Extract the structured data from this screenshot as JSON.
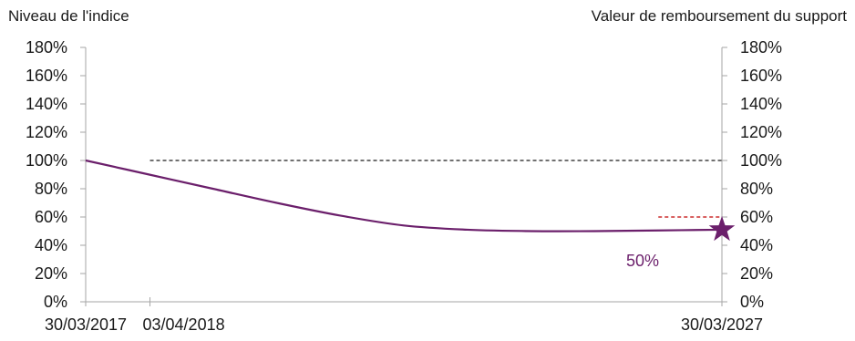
{
  "chart_data": {
    "type": "line",
    "title": "",
    "ylabel_left": "Niveau de l'indice",
    "ylabel_right": "Valeur de remboursement du support",
    "ylim": [
      0,
      180
    ],
    "yticks": [
      0,
      20,
      40,
      60,
      80,
      100,
      120,
      140,
      160,
      180
    ],
    "ytick_labels": [
      "0%",
      "20%",
      "40%",
      "60%",
      "80%",
      "100%",
      "120%",
      "140%",
      "160%",
      "180%"
    ],
    "xlim": [
      "2017-03-30",
      "2027-03-30"
    ],
    "xticks": [
      {
        "date": "2017-03-30",
        "label": "30/03/2017"
      },
      {
        "date": "2018-04-03",
        "label": "03/04/2018"
      },
      {
        "date": "2027-03-30",
        "label": "30/03/2027"
      }
    ],
    "series": [
      {
        "color": "#6b1f6b",
        "points": [
          {
            "x": "2017-03-30",
            "y": 100
          },
          {
            "x": "2018-03-30",
            "y": 90
          },
          {
            "x": "2019-03-30",
            "y": 80
          },
          {
            "x": "2020-03-30",
            "y": 70
          },
          {
            "x": "2021-03-30",
            "y": 61
          },
          {
            "x": "2022-03-30",
            "y": 54
          },
          {
            "x": "2023-03-30",
            "y": 51
          },
          {
            "x": "2024-03-30",
            "y": 50
          },
          {
            "x": "2025-03-30",
            "y": 50
          },
          {
            "x": "2026-03-30",
            "y": 50.5
          },
          {
            "x": "2027-03-30",
            "y": 51
          }
        ]
      }
    ],
    "reference_lines": [
      {
        "y": 100,
        "from": "2018-04-03",
        "to": "2027-03-30",
        "color": "#1a1a1a",
        "style": "dashed"
      },
      {
        "y": 60,
        "from": "2026-03-30",
        "to": "2027-03-30",
        "color": "#c00000",
        "style": "dashed"
      }
    ],
    "marker": {
      "x": "2027-03-30",
      "y": 51,
      "shape": "star",
      "color": "#6b1f6b"
    },
    "annotation": {
      "text": "50%",
      "color": "#6b1f6b"
    },
    "grid": false,
    "legend": "none"
  }
}
